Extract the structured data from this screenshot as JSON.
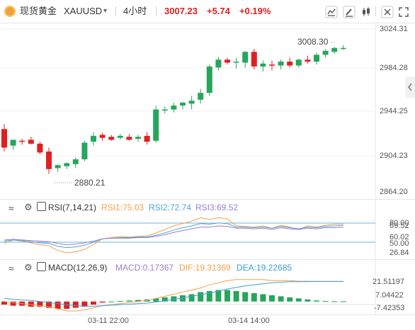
{
  "toolbar": {
    "symbol_name": "现货黄金",
    "symbol_code": "XAUUSD",
    "timeframe": "4小时",
    "price": "3007.23",
    "change": "+5.74",
    "change_pct": "+0.19%",
    "icons": [
      "indicator-icon",
      "draw-icon",
      "candle-type-icon",
      "collapse-icon",
      "fullscreen-icon"
    ],
    "up_color": "#ff2a2a",
    "price_color": "#e02020"
  },
  "price_axis": {
    "ticks": [
      "3024.31",
      "2984.28",
      "2944.25",
      "2904.23",
      "2864.20"
    ],
    "high_label": "3008.30",
    "low_label": "2880.21"
  },
  "rsi": {
    "label": "RSI(7,14,21)",
    "rsi1": "RSI1:75.03",
    "rsi2": "RSI2:72.74",
    "rsi3": "RSI3:69.52",
    "ticks_top": "80.00",
    "ticks_top2": "69.52",
    "ticks_60": "60.02",
    "ticks_50": "50.00",
    "ticks_low": "26.84",
    "colors": {
      "rsi1": "#f5a04a",
      "rsi2": "#4aa8d8",
      "rsi3": "#9a7fd0"
    }
  },
  "macd": {
    "label": "MACD(12,26,9)",
    "macd": "MACD:0.17367",
    "dif": "DIF:19.31369",
    "dea": "DEA:19.22685",
    "ticks": [
      "21.51197",
      "7.04422",
      "-7.42353"
    ],
    "colors": {
      "macd": "#9a7fd0",
      "dif": "#f5a04a",
      "dea": "#3aa0d8"
    }
  },
  "time_axis": {
    "labels": [
      "03-11 22:00",
      "03-14 14:00"
    ]
  },
  "chart_data": {
    "type": "candlestick",
    "up_color": "#26a65b",
    "down_color": "#e02020",
    "ylim": [
      2856,
      3030
    ],
    "candles": [
      {
        "o": 2924,
        "h": 2929,
        "l": 2901,
        "c": 2905
      },
      {
        "o": 2907,
        "h": 2913,
        "l": 2903,
        "c": 2913
      },
      {
        "o": 2912,
        "h": 2914,
        "l": 2908,
        "c": 2911
      },
      {
        "o": 2913,
        "h": 2916,
        "l": 2908,
        "c": 2909
      },
      {
        "o": 2909,
        "h": 2911,
        "l": 2898,
        "c": 2900
      },
      {
        "o": 2901,
        "h": 2905,
        "l": 2878,
        "c": 2883
      },
      {
        "o": 2884,
        "h": 2888,
        "l": 2880,
        "c": 2887
      },
      {
        "o": 2886,
        "h": 2890,
        "l": 2883,
        "c": 2889
      },
      {
        "o": 2888,
        "h": 2895,
        "l": 2884,
        "c": 2893
      },
      {
        "o": 2893,
        "h": 2912,
        "l": 2891,
        "c": 2910
      },
      {
        "o": 2911,
        "h": 2921,
        "l": 2907,
        "c": 2917
      },
      {
        "o": 2918,
        "h": 2920,
        "l": 2912,
        "c": 2915
      },
      {
        "o": 2916,
        "h": 2918,
        "l": 2912,
        "c": 2913
      },
      {
        "o": 2915,
        "h": 2919,
        "l": 2913,
        "c": 2917
      },
      {
        "o": 2916,
        "h": 2919,
        "l": 2912,
        "c": 2913
      },
      {
        "o": 2914,
        "h": 2918,
        "l": 2911,
        "c": 2916
      },
      {
        "o": 2917,
        "h": 2921,
        "l": 2908,
        "c": 2911
      },
      {
        "o": 2912,
        "h": 2948,
        "l": 2910,
        "c": 2944
      },
      {
        "o": 2943,
        "h": 2947,
        "l": 2940,
        "c": 2944
      },
      {
        "o": 2944,
        "h": 2951,
        "l": 2941,
        "c": 2948
      },
      {
        "o": 2948,
        "h": 2952,
        "l": 2944,
        "c": 2951
      },
      {
        "o": 2950,
        "h": 2958,
        "l": 2944,
        "c": 2953
      },
      {
        "o": 2954,
        "h": 2965,
        "l": 2950,
        "c": 2961
      },
      {
        "o": 2961,
        "h": 2990,
        "l": 2958,
        "c": 2988
      },
      {
        "o": 2987,
        "h": 2998,
        "l": 2984,
        "c": 2995
      },
      {
        "o": 2995,
        "h": 2997,
        "l": 2990,
        "c": 2992
      },
      {
        "o": 2992,
        "h": 2997,
        "l": 2986,
        "c": 2993
      },
      {
        "o": 2992,
        "h": 3004,
        "l": 2987,
        "c": 3003
      },
      {
        "o": 3003,
        "h": 3006,
        "l": 2985,
        "c": 2988
      },
      {
        "o": 2988,
        "h": 2994,
        "l": 2983,
        "c": 2991
      },
      {
        "o": 2990,
        "h": 2994,
        "l": 2984,
        "c": 2989
      },
      {
        "o": 2989,
        "h": 2995,
        "l": 2985,
        "c": 2993
      },
      {
        "o": 2993,
        "h": 2997,
        "l": 2987,
        "c": 2989
      },
      {
        "o": 2989,
        "h": 2996,
        "l": 2987,
        "c": 2995
      },
      {
        "o": 2995,
        "h": 2999,
        "l": 2991,
        "c": 2993
      },
      {
        "o": 2993,
        "h": 3002,
        "l": 2990,
        "c": 3000
      },
      {
        "o": 3000,
        "h": 3006,
        "l": 2997,
        "c": 3004
      },
      {
        "o": 3003,
        "h": 3008,
        "l": 3001,
        "c": 3007
      },
      {
        "o": 3007,
        "h": 3010,
        "l": 3005,
        "c": 3007
      }
    ],
    "rsi_series": {
      "ylim": [
        20,
        95
      ],
      "rsi1": [
        42,
        48,
        46,
        43,
        40,
        38,
        30,
        26,
        28,
        32,
        40,
        50,
        52,
        54,
        53,
        54,
        55,
        60,
        66,
        72,
        76,
        80,
        86,
        83,
        86,
        84,
        72,
        71,
        70,
        72,
        68,
        73,
        70,
        66,
        72,
        70,
        73,
        75,
        75
      ],
      "rsi2": [
        46,
        48,
        47,
        45,
        43,
        42,
        37,
        35,
        36,
        39,
        44,
        50,
        51,
        52,
        52,
        53,
        53,
        56,
        60,
        65,
        69,
        72,
        76,
        75,
        77,
        76,
        70,
        70,
        69,
        70,
        68,
        71,
        69,
        67,
        70,
        69,
        71,
        72,
        73
      ],
      "rsi3": [
        48,
        49,
        48,
        47,
        46,
        45,
        42,
        40,
        41,
        43,
        46,
        50,
        51,
        51,
        51,
        52,
        52,
        54,
        57,
        61,
        64,
        67,
        70,
        70,
        72,
        71,
        68,
        68,
        67,
        68,
        66,
        69,
        67,
        66,
        68,
        67,
        69,
        69,
        70
      ]
    },
    "macd_series": {
      "ylim": [
        -11,
        27
      ],
      "macd": [
        -3,
        -4,
        -4,
        -5,
        -5,
        -6,
        -7,
        -7,
        -6,
        -5,
        -3,
        -1,
        0,
        0.5,
        1,
        1.5,
        2,
        3,
        4,
        5,
        6,
        7,
        9,
        10,
        11,
        11,
        10,
        9,
        8,
        7,
        6,
        5,
        4,
        3,
        2,
        1,
        0.5,
        0.2,
        0.2
      ],
      "dif": [
        0,
        -1,
        -2,
        -3,
        -4,
        -5,
        -7,
        -9,
        -9,
        -8,
        -6,
        -4,
        -3,
        -2,
        -1,
        0,
        1,
        3,
        5,
        7,
        9,
        11,
        13,
        16,
        18,
        20,
        21,
        21,
        21,
        21,
        20,
        20,
        20,
        19.5,
        19.5,
        19.3,
        19.3,
        19.3,
        19.3
      ],
      "dea": [
        3,
        2,
        1.5,
        1,
        0,
        -1,
        -2,
        -3,
        -4,
        -4.5,
        -4.5,
        -4,
        -3.5,
        -3,
        -2.5,
        -2,
        -1.5,
        -0.5,
        0.5,
        2,
        3.5,
        5,
        6.5,
        8,
        10,
        12,
        13.5,
        15,
        16,
        17,
        18,
        18.5,
        19,
        19,
        19.1,
        19.2,
        19.2,
        19.2,
        19.2
      ]
    }
  }
}
